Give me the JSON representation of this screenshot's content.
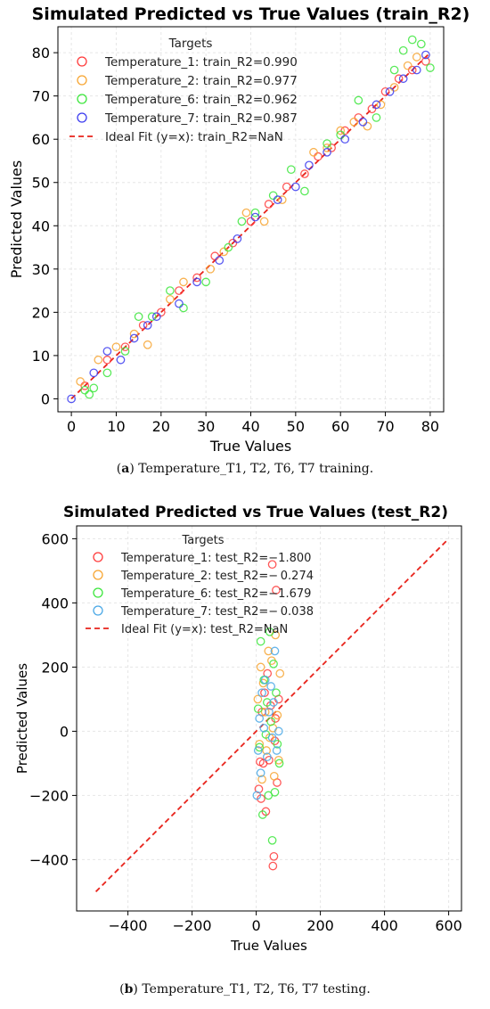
{
  "colors": {
    "Temperature_1": "#ff3b3b",
    "Temperature_2": "#f7a531",
    "Temperature_6": "#3ce63c",
    "Temperature_7": "#3b3bf0",
    "Temperature_7_test": "#4aa8e6",
    "ideal": "#e8231b"
  },
  "captions": {
    "a_letter": "a",
    "a_text": "Temperature_T1, T2, T6, T7 training.",
    "b_letter": "b",
    "b_text": "Temperature_T1, T2, T6, T7 testing."
  },
  "chart_data": [
    {
      "type": "scatter",
      "title": "Simulated Predicted vs True Values (train_R2)",
      "xlabel": "True Values",
      "ylabel": "Predicted Values",
      "xlim": [
        -3,
        83
      ],
      "ylim": [
        -3,
        86
      ],
      "xticks": [
        0,
        10,
        20,
        30,
        40,
        50,
        60,
        70,
        80
      ],
      "yticks": [
        0,
        10,
        20,
        30,
        40,
        50,
        60,
        70,
        80
      ],
      "grid": true,
      "legend_title": "Targets",
      "legend_position": "top-left",
      "ideal_line": {
        "label": "Ideal Fit (y=x): train_R2=NaN",
        "from": [
          0,
          0
        ],
        "to": [
          80,
          80
        ]
      },
      "series": [
        {
          "name": "Temperature_1: train_R2=0.990",
          "color_key": "Temperature_1",
          "x": [
            3,
            8,
            12,
            16,
            20,
            24,
            28,
            32,
            36,
            40,
            44,
            48,
            52,
            55,
            58,
            61,
            64,
            67,
            70,
            73,
            76,
            79
          ],
          "y": [
            3,
            9,
            12,
            17,
            20,
            25,
            28,
            33,
            36,
            41,
            45,
            49,
            52,
            56,
            58,
            62,
            65,
            67,
            71,
            74,
            76,
            78
          ]
        },
        {
          "name": "Temperature_2: train_R2=0.977",
          "color_key": "Temperature_2",
          "x": [
            2,
            6,
            10,
            14,
            17,
            22,
            25,
            31,
            34,
            39,
            43,
            47,
            54,
            57,
            60,
            63,
            66,
            69,
            72,
            75,
            77
          ],
          "y": [
            4,
            9,
            12,
            15,
            12.5,
            23,
            27,
            30,
            34,
            43,
            41,
            46,
            57,
            58,
            62,
            64,
            63,
            68,
            72,
            77,
            79
          ]
        },
        {
          "name": "Temperature_6: train_R2=0.962",
          "color_key": "Temperature_6",
          "x": [
            3,
            4,
            5,
            8,
            12,
            15,
            18,
            22,
            25,
            30,
            35,
            38,
            41,
            45,
            49,
            52,
            57,
            60,
            64,
            68,
            72,
            74,
            76,
            78,
            80
          ],
          "y": [
            2,
            1,
            2.5,
            6,
            11,
            19,
            19,
            25,
            21,
            27,
            35,
            41,
            43,
            47,
            53,
            48,
            59,
            61,
            69,
            65,
            76,
            80.5,
            83,
            82,
            76.5
          ]
        },
        {
          "name": "Temperature_7: train_R2=0.987",
          "color_key": "Temperature_7",
          "x": [
            0,
            5,
            8,
            11,
            14,
            17,
            19,
            24,
            28,
            33,
            37,
            41,
            46,
            50,
            53,
            57,
            61,
            65,
            68,
            71,
            74,
            77,
            79
          ],
          "y": [
            0,
            6,
            11,
            9,
            14,
            17,
            19,
            22,
            27,
            32,
            37,
            42,
            46,
            49,
            54,
            57,
            60,
            64,
            68,
            71,
            74,
            76,
            79.5
          ]
        }
      ]
    },
    {
      "type": "scatter",
      "title": "Simulated Predicted vs True Values (test_R2)",
      "xlabel": "True Values",
      "ylabel": "Predicted Values",
      "xlim": [
        -560,
        640
      ],
      "ylim": [
        -560,
        640
      ],
      "xticks": [
        -400,
        -200,
        0,
        200,
        400,
        600
      ],
      "yticks": [
        -400,
        -200,
        0,
        200,
        400,
        600
      ],
      "grid": true,
      "legend_title": "Targets",
      "legend_position": "top-left",
      "ideal_line": {
        "label": "Ideal Fit (y=x): test_R2=NaN",
        "from": [
          -500,
          -500
        ],
        "to": [
          600,
          600
        ]
      },
      "series": [
        {
          "name": "Temperature_1: test_R2=−1.800",
          "color_key": "Temperature_1",
          "x": [
            8,
            12,
            15,
            18,
            22,
            26,
            30,
            35,
            40,
            45,
            50,
            52,
            55,
            58,
            60,
            62,
            65,
            70
          ],
          "y": [
            -180,
            -95,
            -210,
            60,
            -100,
            120,
            -250,
            180,
            -90,
            80,
            520,
            -420,
            -390,
            -30,
            40,
            440,
            -160,
            100
          ]
        },
        {
          "name": "Temperature_2: test_R2=− 0.274",
          "color_key": "Temperature_2",
          "x": [
            5,
            10,
            14,
            18,
            22,
            28,
            32,
            38,
            42,
            48,
            52,
            56,
            60,
            66,
            70,
            74
          ],
          "y": [
            100,
            -40,
            200,
            -150,
            150,
            60,
            -60,
            250,
            -20,
            220,
            10,
            -140,
            300,
            50,
            -90,
            180
          ]
        },
        {
          "name": "Temperature_6: test_R2=−1.679",
          "color_key": "Temperature_6",
          "x": [
            6,
            10,
            14,
            20,
            24,
            30,
            34,
            38,
            42,
            46,
            50,
            54,
            58,
            62,
            66,
            72
          ],
          "y": [
            70,
            -50,
            280,
            -260,
            160,
            -10,
            90,
            -200,
            310,
            30,
            -340,
            210,
            -190,
            120,
            -40,
            -100
          ]
        },
        {
          "name": "Temperature_7: test_R2=− 0.038",
          "color_key": "Temperature_7_test",
          "x": [
            2,
            6,
            10,
            14,
            18,
            24,
            28,
            34,
            40,
            46,
            50,
            54,
            58,
            64,
            70
          ],
          "y": [
            -200,
            -60,
            40,
            -130,
            120,
            10,
            160,
            -80,
            60,
            140,
            -20,
            90,
            250,
            -60,
            0
          ]
        }
      ]
    }
  ]
}
